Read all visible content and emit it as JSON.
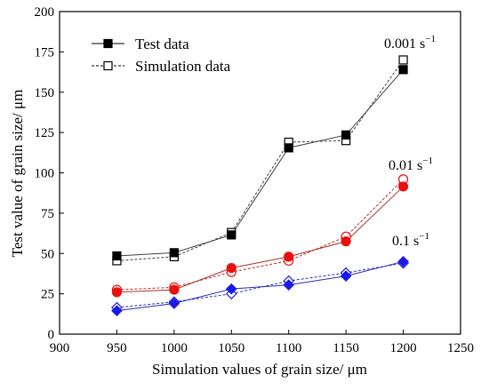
{
  "chart_data": {
    "type": "line",
    "xlabel": "Simulation values of grain size/ μm",
    "ylabel": "Test value of grain size/ μm",
    "xlim": [
      900,
      1250
    ],
    "ylim": [
      0,
      200
    ],
    "xticks": [
      900,
      950,
      1000,
      1050,
      1100,
      1150,
      1200,
      1250
    ],
    "yticks": [
      0,
      25,
      50,
      75,
      100,
      125,
      150,
      175,
      200
    ],
    "grid": false,
    "legend": {
      "placement": "top-left",
      "entries": [
        {
          "label": "Test data",
          "style": "solid-filled-square"
        },
        {
          "label": "Simulation data",
          "style": "dashed-open-square"
        }
      ]
    },
    "x": [
      950,
      1000,
      1050,
      1100,
      1150,
      1200
    ],
    "groups": [
      {
        "annotation": "0.001 s",
        "annotation_exponent": "−1",
        "color": "#000000",
        "line_color": "#404040",
        "marker": "square",
        "test_values": [
          48.5,
          50.5,
          61.5,
          115.5,
          123.5,
          164
        ],
        "sim_values": [
          45.5,
          48,
          63,
          119,
          120,
          170
        ]
      },
      {
        "annotation": "0.01 s",
        "annotation_exponent": "−1",
        "color": "#e8110f",
        "line_color": "#b03028",
        "marker": "circle",
        "test_values": [
          26,
          27.5,
          41,
          48,
          57.5,
          91.5
        ],
        "sim_values": [
          27.5,
          29,
          38.5,
          45.5,
          60.5,
          96
        ]
      },
      {
        "annotation": "0.1 s",
        "annotation_exponent": "−1",
        "color": "#1a1ae6",
        "line_color": "#2a2ab8",
        "marker": "diamond",
        "test_values": [
          14.5,
          19,
          28,
          30.5,
          36,
          45
        ],
        "sim_values": [
          16.5,
          20,
          25,
          33,
          38,
          44
        ]
      }
    ]
  }
}
